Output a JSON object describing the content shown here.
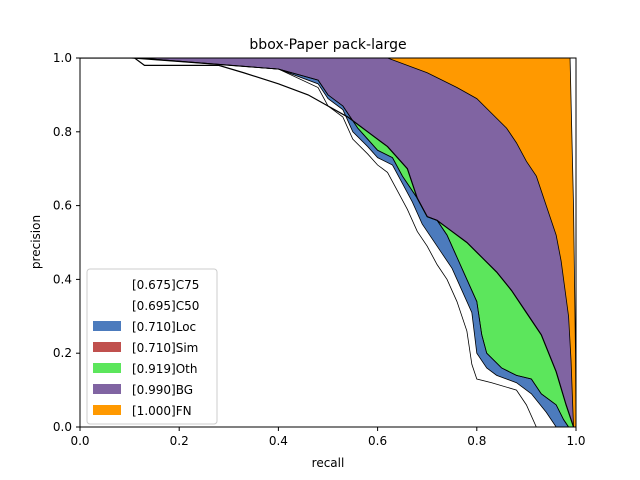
{
  "chart_data": {
    "type": "area",
    "title": "bbox-Paper pack-large",
    "xlabel": "recall",
    "ylabel": "precision",
    "xlim": [
      0,
      1
    ],
    "ylim": [
      0,
      1
    ],
    "x_ticks": [
      "0.0",
      "0.2",
      "0.4",
      "0.6",
      "0.8",
      "1.0"
    ],
    "y_ticks": [
      "0.0",
      "0.2",
      "0.4",
      "0.6",
      "0.8",
      "1.0"
    ],
    "legend_position": "lower-left",
    "series": [
      {
        "name": "[0.675]C75",
        "color": "#ffffff",
        "points": [
          [
            0,
            1
          ],
          [
            0.1,
            1
          ],
          [
            0.4,
            0.97
          ],
          [
            0.48,
            0.92
          ],
          [
            0.5,
            0.87
          ],
          [
            0.53,
            0.84
          ],
          [
            0.55,
            0.78
          ],
          [
            0.58,
            0.74
          ],
          [
            0.6,
            0.71
          ],
          [
            0.62,
            0.69
          ],
          [
            0.64,
            0.64
          ],
          [
            0.66,
            0.59
          ],
          [
            0.68,
            0.53
          ],
          [
            0.7,
            0.49
          ],
          [
            0.72,
            0.44
          ],
          [
            0.74,
            0.4
          ],
          [
            0.76,
            0.34
          ],
          [
            0.78,
            0.26
          ],
          [
            0.79,
            0.17
          ],
          [
            0.8,
            0.13
          ],
          [
            0.83,
            0.12
          ],
          [
            0.88,
            0.1
          ],
          [
            0.9,
            0.06
          ],
          [
            0.92,
            0.0
          ]
        ]
      },
      {
        "name": "[0.695]C50",
        "color": "#ffffff",
        "points": [
          [
            0,
            1
          ],
          [
            0.11,
            1
          ],
          [
            0.4,
            0.97
          ],
          [
            0.48,
            0.93
          ],
          [
            0.5,
            0.89
          ],
          [
            0.53,
            0.86
          ],
          [
            0.55,
            0.8
          ],
          [
            0.58,
            0.76
          ],
          [
            0.6,
            0.73
          ],
          [
            0.63,
            0.71
          ],
          [
            0.65,
            0.66
          ],
          [
            0.67,
            0.61
          ],
          [
            0.69,
            0.55
          ],
          [
            0.71,
            0.51
          ],
          [
            0.73,
            0.47
          ],
          [
            0.75,
            0.43
          ],
          [
            0.77,
            0.37
          ],
          [
            0.79,
            0.31
          ],
          [
            0.8,
            0.2
          ],
          [
            0.82,
            0.16
          ],
          [
            0.84,
            0.14
          ],
          [
            0.88,
            0.12
          ],
          [
            0.91,
            0.09
          ],
          [
            0.94,
            0.04
          ],
          [
            0.96,
            0.0
          ]
        ]
      },
      {
        "name": "[0.710]Loc",
        "color": "#4c7bbd",
        "points": [
          [
            0,
            1
          ],
          [
            0.12,
            1
          ],
          [
            0.4,
            0.97
          ],
          [
            0.48,
            0.94
          ],
          [
            0.5,
            0.9
          ],
          [
            0.53,
            0.87
          ],
          [
            0.56,
            0.81
          ],
          [
            0.58,
            0.78
          ],
          [
            0.6,
            0.75
          ],
          [
            0.63,
            0.73
          ],
          [
            0.65,
            0.68
          ],
          [
            0.68,
            0.62
          ],
          [
            0.7,
            0.57
          ],
          [
            0.72,
            0.56
          ],
          [
            0.74,
            0.52
          ],
          [
            0.76,
            0.46
          ],
          [
            0.78,
            0.4
          ],
          [
            0.8,
            0.34
          ],
          [
            0.81,
            0.25
          ],
          [
            0.82,
            0.2
          ],
          [
            0.85,
            0.16
          ],
          [
            0.88,
            0.14
          ],
          [
            0.91,
            0.13
          ],
          [
            0.93,
            0.09
          ],
          [
            0.96,
            0.06
          ],
          [
            0.975,
            0.02
          ],
          [
            0.985,
            0.0
          ]
        ]
      },
      {
        "name": "[0.710]Sim",
        "color": "#c0504d",
        "points": [
          [
            0,
            1
          ],
          [
            0.12,
            1
          ],
          [
            0.4,
            0.97
          ],
          [
            0.48,
            0.94
          ],
          [
            0.5,
            0.9
          ],
          [
            0.53,
            0.87
          ],
          [
            0.56,
            0.81
          ],
          [
            0.58,
            0.78
          ],
          [
            0.6,
            0.75
          ],
          [
            0.63,
            0.73
          ],
          [
            0.65,
            0.68
          ],
          [
            0.68,
            0.62
          ],
          [
            0.7,
            0.57
          ],
          [
            0.72,
            0.56
          ],
          [
            0.74,
            0.52
          ],
          [
            0.76,
            0.46
          ],
          [
            0.78,
            0.4
          ],
          [
            0.8,
            0.34
          ],
          [
            0.81,
            0.25
          ],
          [
            0.82,
            0.2
          ],
          [
            0.85,
            0.16
          ],
          [
            0.88,
            0.14
          ],
          [
            0.91,
            0.13
          ],
          [
            0.93,
            0.09
          ],
          [
            0.96,
            0.06
          ],
          [
            0.975,
            0.02
          ],
          [
            0.985,
            0.0
          ]
        ]
      },
      {
        "name": "[0.919]Oth",
        "color": "#5ce65c",
        "points": [
          [
            0,
            1
          ],
          [
            0.11,
            1
          ],
          [
            0.13,
            0.98
          ],
          [
            0.28,
            0.98
          ],
          [
            0.33,
            0.96
          ],
          [
            0.4,
            0.93
          ],
          [
            0.46,
            0.9
          ],
          [
            0.5,
            0.87
          ],
          [
            0.54,
            0.84
          ],
          [
            0.58,
            0.8
          ],
          [
            0.62,
            0.76
          ],
          [
            0.66,
            0.7
          ],
          [
            0.68,
            0.62
          ],
          [
            0.7,
            0.57
          ],
          [
            0.72,
            0.56
          ],
          [
            0.75,
            0.53
          ],
          [
            0.78,
            0.5
          ],
          [
            0.81,
            0.46
          ],
          [
            0.84,
            0.42
          ],
          [
            0.87,
            0.37
          ],
          [
            0.9,
            0.31
          ],
          [
            0.93,
            0.25
          ],
          [
            0.96,
            0.15
          ],
          [
            0.98,
            0.06
          ],
          [
            0.995,
            0.0
          ]
        ]
      },
      {
        "name": "[0.990]BG",
        "color": "#8064a2",
        "points": [
          [
            0,
            1
          ],
          [
            0.27,
            1
          ],
          [
            0.38,
            1
          ],
          [
            0.62,
            1
          ],
          [
            0.66,
            0.98
          ],
          [
            0.7,
            0.96
          ],
          [
            0.73,
            0.94
          ],
          [
            0.76,
            0.92
          ],
          [
            0.8,
            0.89
          ],
          [
            0.83,
            0.85
          ],
          [
            0.86,
            0.81
          ],
          [
            0.88,
            0.77
          ],
          [
            0.9,
            0.72
          ],
          [
            0.92,
            0.68
          ],
          [
            0.94,
            0.6
          ],
          [
            0.96,
            0.52
          ],
          [
            0.97,
            0.45
          ],
          [
            0.985,
            0.3
          ],
          [
            0.99,
            0.18
          ],
          [
            0.995,
            0.0
          ]
        ]
      },
      {
        "name": "[1.000]FN",
        "color": "#ff9900",
        "points": [
          [
            0,
            1
          ],
          [
            0.988,
            1
          ],
          [
            0.995,
            0.6
          ],
          [
            0.999,
            0.2
          ],
          [
            1.0,
            0.0
          ]
        ]
      }
    ]
  }
}
